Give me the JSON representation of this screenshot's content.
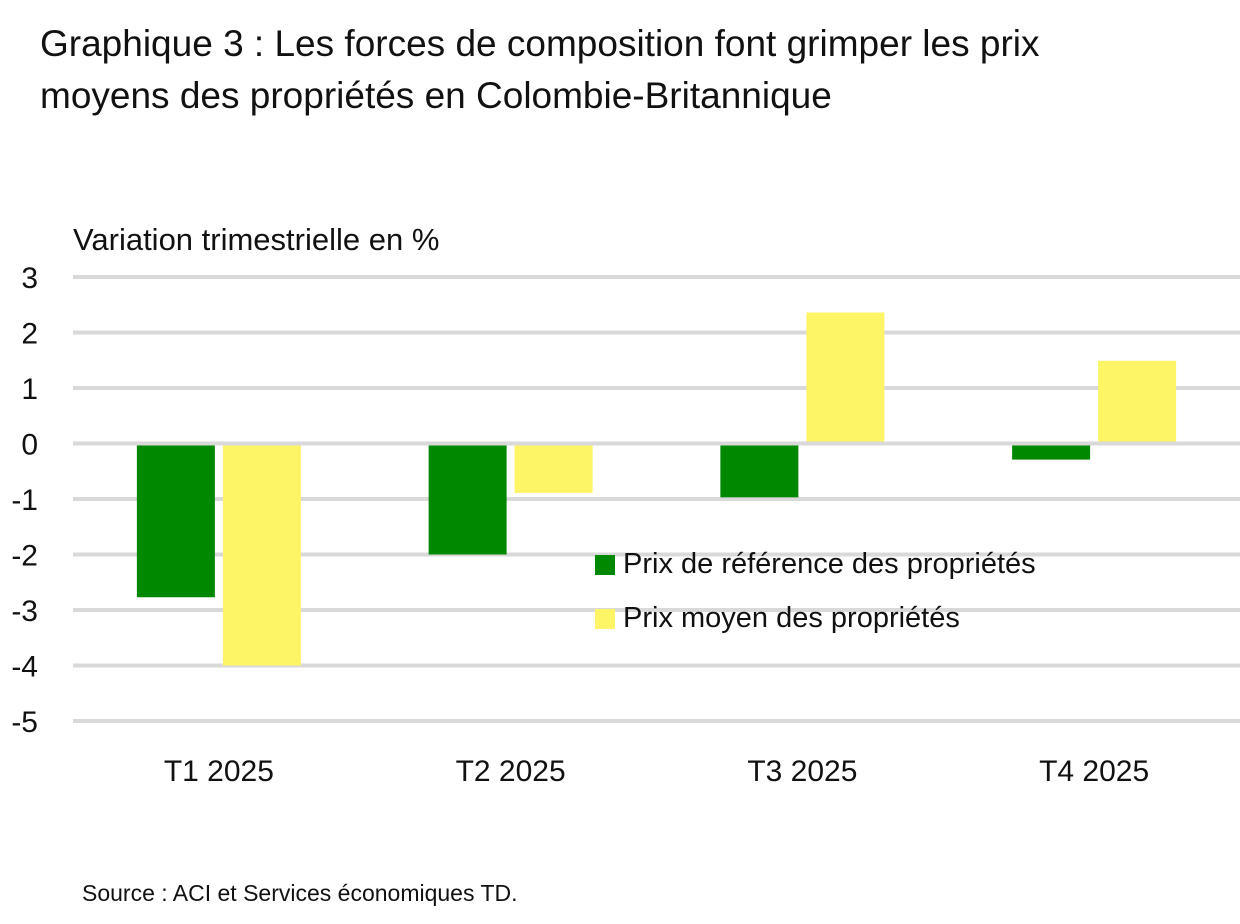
{
  "title": "Graphique 3 : Les forces de composition font grimper les prix moyens des propriétés en Colombie-Britannique",
  "source": "Source : ACI et Services économiques TD.",
  "chart_data": {
    "type": "bar",
    "title": "Graphique 3 : Les forces de composition font grimper les prix moyens des propriétés en Colombie-Britannique",
    "ylabel": "Variation trimestrielle en %",
    "xlabel": "",
    "categories": [
      "T1 2025",
      "T2 2025",
      "T3 2025",
      "T4 2025"
    ],
    "ylim": [
      -5,
      3
    ],
    "yticks": [
      3,
      2,
      1,
      0,
      -1,
      -2,
      -3,
      -4,
      -5
    ],
    "grid": true,
    "legend_position": "center-right",
    "series": [
      {
        "name": "Prix de référence des propriétés",
        "color": "#008800",
        "values": [
          -2.77,
          -2.0,
          -0.97,
          -0.29
        ]
      },
      {
        "name": "Prix moyen des propriétés",
        "color": "#FDF466",
        "values": [
          -4.0,
          -0.89,
          2.36,
          1.49
        ]
      }
    ]
  }
}
